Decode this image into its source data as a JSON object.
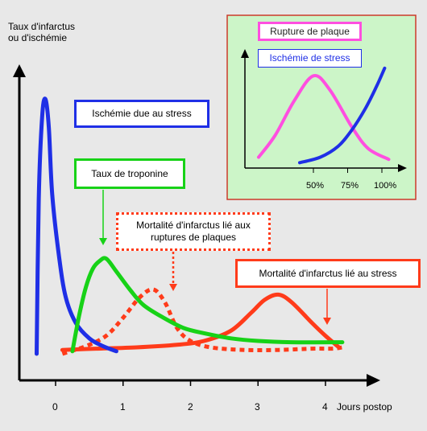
{
  "chart_data": {
    "type": "line",
    "ylabel_line1": "Taux d'infarctus",
    "ylabel_line2": "ou d'ischémie",
    "xlabel": "Jours postop",
    "x_ticks": [
      "0",
      "1",
      "2",
      "3",
      "4"
    ],
    "xlim": [
      -0.55,
      4.7
    ],
    "ylim": [
      0,
      1
    ],
    "series": [
      {
        "name": "Ischémie due au stress",
        "color": "#1f2fe6",
        "style": "solid",
        "points": [
          [
            -0.28,
            0.0
          ],
          [
            -0.25,
            0.6
          ],
          [
            -0.2,
            0.92
          ],
          [
            -0.15,
            0.99
          ],
          [
            -0.1,
            0.88
          ],
          [
            -0.05,
            0.62
          ],
          [
            0.05,
            0.38
          ],
          [
            0.15,
            0.22
          ],
          [
            0.3,
            0.12
          ],
          [
            0.5,
            0.06
          ],
          [
            0.7,
            0.03
          ],
          [
            0.9,
            0.01
          ]
        ]
      },
      {
        "name": "Taux de troponine",
        "color": "#17d217",
        "style": "solid",
        "points": [
          [
            0.25,
            0.01
          ],
          [
            0.35,
            0.15
          ],
          [
            0.45,
            0.26
          ],
          [
            0.55,
            0.33
          ],
          [
            0.65,
            0.36
          ],
          [
            0.75,
            0.37
          ],
          [
            0.9,
            0.32
          ],
          [
            1.1,
            0.25
          ],
          [
            1.3,
            0.19
          ],
          [
            1.6,
            0.14
          ],
          [
            1.9,
            0.1
          ],
          [
            2.2,
            0.08
          ],
          [
            2.6,
            0.06
          ],
          [
            3.0,
            0.05
          ],
          [
            3.5,
            0.045
          ],
          [
            4.25,
            0.045
          ]
        ]
      },
      {
        "name": "Mortalité d'infarctus lié aux ruptures de plaques",
        "color": "#ff3b1a",
        "style": "dotted",
        "points": [
          [
            0.1,
            0.0
          ],
          [
            0.45,
            0.03
          ],
          [
            0.75,
            0.07
          ],
          [
            1.0,
            0.14
          ],
          [
            1.25,
            0.22
          ],
          [
            1.45,
            0.25
          ],
          [
            1.62,
            0.2
          ],
          [
            1.8,
            0.1
          ],
          [
            2.0,
            0.05
          ],
          [
            2.3,
            0.025
          ],
          [
            2.8,
            0.015
          ],
          [
            3.3,
            0.015
          ],
          [
            3.8,
            0.02
          ],
          [
            4.1,
            0.02
          ],
          [
            4.25,
            0.025
          ]
        ]
      },
      {
        "name": "Mortalité d'infarctus lié au stress",
        "color": "#ff3b1a",
        "style": "solid",
        "points": [
          [
            0.1,
            0.015
          ],
          [
            0.6,
            0.02
          ],
          [
            1.2,
            0.025
          ],
          [
            1.8,
            0.035
          ],
          [
            2.2,
            0.05
          ],
          [
            2.6,
            0.09
          ],
          [
            2.9,
            0.16
          ],
          [
            3.1,
            0.21
          ],
          [
            3.3,
            0.23
          ],
          [
            3.5,
            0.2
          ],
          [
            3.8,
            0.12
          ],
          [
            4.0,
            0.07
          ],
          [
            4.2,
            0.025
          ]
        ]
      }
    ],
    "labels": {
      "stress_ischemia": "Ischémie due au stress",
      "troponin": "Taux de troponine",
      "plaque_mortality_line1": "Mortalité d'infarctus lié aux",
      "plaque_mortality_line2": "ruptures de plaques",
      "stress_mortality": "Mortalité d'infarctus lié au stress"
    },
    "inset": {
      "type": "line",
      "x_ticks": [
        "50%",
        "75%",
        "100%"
      ],
      "series": [
        {
          "name": "Rupture de plaque",
          "color": "#ff4fe0",
          "points": [
            [
              10,
              0.1
            ],
            [
              22,
              0.3
            ],
            [
              36,
              0.62
            ],
            [
              50,
              0.85
            ],
            [
              62,
              0.72
            ],
            [
              78,
              0.38
            ],
            [
              90,
              0.18
            ],
            [
              105,
              0.08
            ]
          ]
        },
        {
          "name": "Ischémie de stress",
          "color": "#1f2fe6",
          "points": [
            [
              40,
              0.05
            ],
            [
              55,
              0.1
            ],
            [
              68,
              0.2
            ],
            [
              78,
              0.35
            ],
            [
              88,
              0.55
            ],
            [
              96,
              0.75
            ],
            [
              102,
              0.92
            ]
          ]
        }
      ]
    }
  }
}
